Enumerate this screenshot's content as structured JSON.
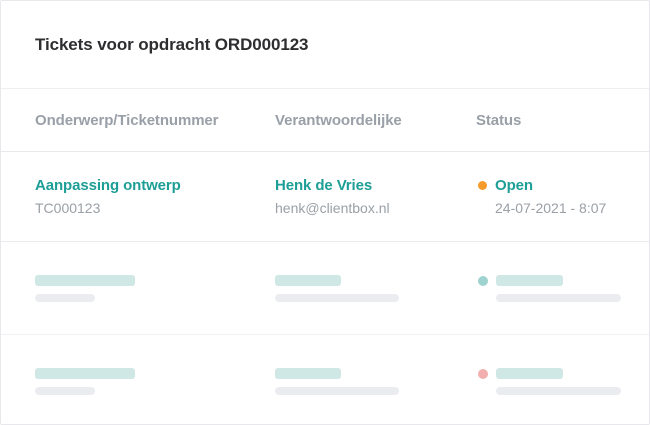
{
  "card": {
    "title": "Tickets voor opdracht ORD000123"
  },
  "table": {
    "columns": [
      "Onderwerp/Ticketnummer",
      "Verantwoordelijke",
      "Status"
    ],
    "rows": [
      {
        "type": "data",
        "subject": "Aanpassing ontwerp",
        "ticket_number": "TC000123",
        "responsible_name": "Henk de Vries",
        "responsible_email": "henk@clientbox.nl",
        "status_label": "Open",
        "status_dot_color": "#f59b2b",
        "status_timestamp": "24-07-2021 - 8:07"
      },
      {
        "type": "skeleton",
        "status_dot_color": "#9fd3cf"
      },
      {
        "type": "skeleton",
        "status_dot_color": "#f3afad"
      }
    ]
  },
  "colors": {
    "accent_teal": "#1d9e96",
    "title_text": "#2e2e31",
    "header_text": "#9aa0a8",
    "secondary_text": "#9aa0a6",
    "status_open_orange": "#f59b2b",
    "skeleton_bar_teal": "#cfe8e5",
    "skeleton_bar_gray": "#eaecf0",
    "skeleton_dot_teal": "#9fd3cf",
    "skeleton_dot_pink": "#f3afad",
    "row_border": "#ebebef"
  }
}
